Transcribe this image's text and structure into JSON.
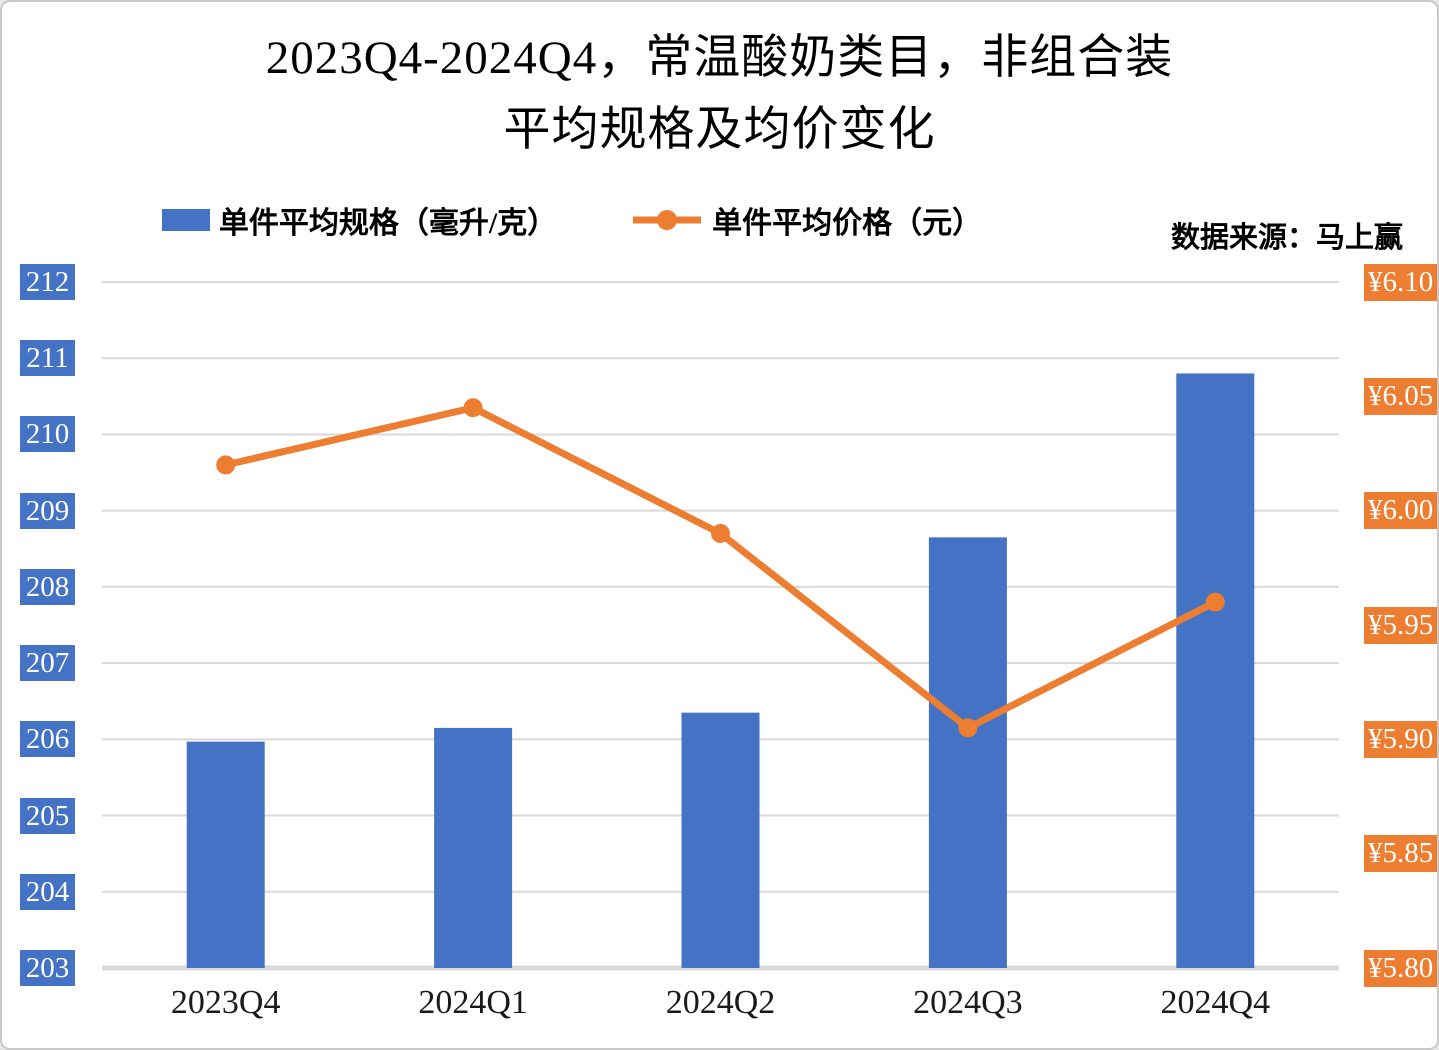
{
  "title": {
    "line1": "2023Q4-2024Q4，常温酸奶类目，非组合装",
    "line2": "平均规格及均价变化"
  },
  "legend": {
    "bar_label": "单件平均规格（毫升/克）",
    "line_label": "单件平均价格（元）"
  },
  "source_note": "数据来源：马上赢",
  "colors": {
    "bar": "#4472C4",
    "line": "#ED7D31",
    "gridline": "#D9D9D9",
    "axis_label_text": "#FFFFFF",
    "x_label_text": "#1A1A1A"
  },
  "chart_data": {
    "type": "bar",
    "subtype": "combo-bar-line-dual-axis",
    "categories": [
      "2023Q4",
      "2024Q1",
      "2024Q2",
      "2024Q3",
      "2024Q4"
    ],
    "series": [
      {
        "name": "单件平均规格（毫升/克）",
        "type": "bar",
        "axis": "left",
        "values": [
          205.97,
          206.15,
          206.35,
          208.65,
          210.8
        ]
      },
      {
        "name": "单件平均价格（元）",
        "type": "line",
        "axis": "right",
        "values": [
          6.02,
          6.045,
          5.99,
          5.905,
          5.96
        ]
      }
    ],
    "left_axis": {
      "min": 203,
      "max": 212,
      "step": 1,
      "ticks": [
        212,
        211,
        210,
        209,
        208,
        207,
        206,
        205,
        204,
        203
      ]
    },
    "right_axis": {
      "min": 5.8,
      "max": 6.1,
      "step": 0.05,
      "tick_values": [
        6.1,
        6.05,
        6.0,
        5.95,
        5.9,
        5.85,
        5.8
      ],
      "tick_labels": [
        "¥6.10",
        "¥6.05",
        "¥6.00",
        "¥5.95",
        "¥5.90",
        "¥5.85",
        "¥5.80"
      ]
    },
    "grid": "horizontal",
    "legend_position": "top"
  }
}
